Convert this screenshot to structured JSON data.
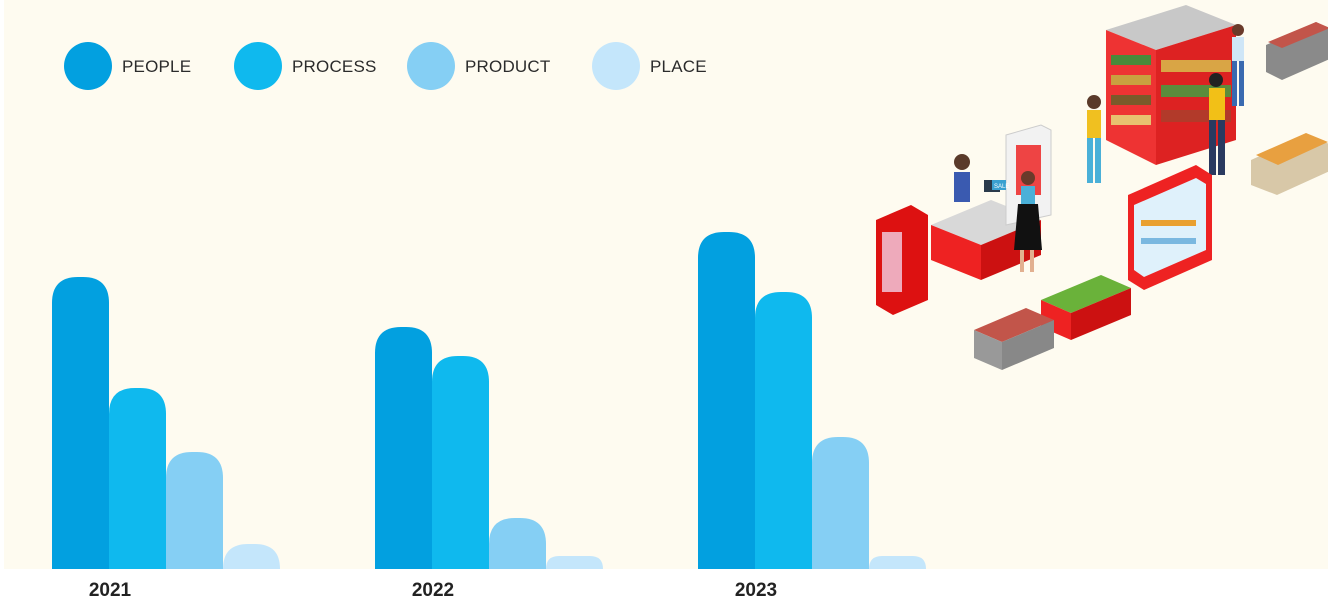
{
  "chart_data": {
    "type": "bar",
    "title": "",
    "xlabel": "",
    "ylabel": "",
    "categories": [
      "2021",
      "2022",
      "2023"
    ],
    "series": [
      {
        "name": "PEOPLE",
        "color": "#02a0e0",
        "values": [
          292,
          242,
          337
        ]
      },
      {
        "name": "PROCESS",
        "color": "#0fb9ee",
        "values": [
          181,
          213,
          277
        ]
      },
      {
        "name": "PRODUCT",
        "color": "#85cff4",
        "values": [
          117,
          51,
          132
        ]
      },
      {
        "name": "PLACE",
        "color": "#c4e6fb",
        "values": [
          25,
          13,
          13
        ]
      }
    ],
    "ylim": [
      0,
      350
    ],
    "grid": false,
    "legend_position": "top-left",
    "axes_visible": false
  },
  "illustration": {
    "name": "supermarket-illustration",
    "price_tag": "SALE"
  }
}
